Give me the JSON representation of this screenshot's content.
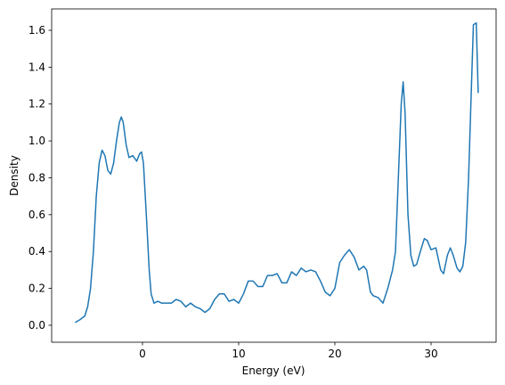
{
  "chart_data": {
    "type": "line",
    "xlabel": "Energy (eV)",
    "ylabel": "Density",
    "x": [
      -7,
      -6.5,
      -6,
      -5.7,
      -5.4,
      -5.1,
      -4.8,
      -4.5,
      -4.2,
      -3.9,
      -3.6,
      -3.3,
      -3,
      -2.7,
      -2.4,
      -2.2,
      -2,
      -1.7,
      -1.4,
      -1,
      -0.6,
      -0.3,
      -0.1,
      0.1,
      0.4,
      0.7,
      0.9,
      1.2,
      1.6,
      2,
      2.5,
      3,
      3.5,
      4,
      4.5,
      5,
      5.5,
      6,
      6.5,
      7,
      7.5,
      8,
      8.5,
      9,
      9.5,
      10,
      10.5,
      11,
      11.5,
      12,
      12.5,
      13,
      13.5,
      14,
      14.5,
      15,
      15.5,
      16,
      16.5,
      17,
      17.5,
      18,
      18.5,
      19,
      19.5,
      20,
      20.5,
      21,
      21.5,
      22,
      22.5,
      23,
      23.3,
      23.7,
      24,
      24.5,
      25,
      25.5,
      26,
      26.3,
      26.6,
      26.9,
      27.1,
      27.3,
      27.6,
      27.9,
      28.2,
      28.5,
      29,
      29.3,
      29.6,
      30,
      30.5,
      31,
      31.3,
      31.7,
      32,
      32.3,
      32.7,
      33,
      33.3,
      33.6,
      33.9,
      34.2,
      34.4,
      34.7,
      34.9
    ],
    "values": [
      0.015,
      0.03,
      0.05,
      0.1,
      0.2,
      0.4,
      0.7,
      0.88,
      0.95,
      0.92,
      0.84,
      0.82,
      0.88,
      1.0,
      1.1,
      1.13,
      1.1,
      0.98,
      0.91,
      0.92,
      0.89,
      0.93,
      0.94,
      0.88,
      0.6,
      0.3,
      0.17,
      0.12,
      0.13,
      0.12,
      0.12,
      0.12,
      0.14,
      0.13,
      0.1,
      0.12,
      0.1,
      0.09,
      0.07,
      0.09,
      0.14,
      0.17,
      0.17,
      0.13,
      0.14,
      0.12,
      0.17,
      0.24,
      0.24,
      0.21,
      0.21,
      0.27,
      0.27,
      0.28,
      0.23,
      0.23,
      0.29,
      0.27,
      0.31,
      0.29,
      0.3,
      0.29,
      0.24,
      0.18,
      0.16,
      0.2,
      0.34,
      0.38,
      0.41,
      0.37,
      0.3,
      0.32,
      0.3,
      0.18,
      0.16,
      0.15,
      0.12,
      0.2,
      0.3,
      0.4,
      0.8,
      1.2,
      1.32,
      1.15,
      0.6,
      0.38,
      0.32,
      0.33,
      0.42,
      0.47,
      0.46,
      0.41,
      0.42,
      0.3,
      0.28,
      0.38,
      0.42,
      0.38,
      0.31,
      0.29,
      0.32,
      0.45,
      0.8,
      1.3,
      1.63,
      1.64,
      1.26
    ],
    "color": "#1f77b4",
    "xlim": [
      -9.44,
      36.76
    ],
    "ylim": [
      -0.092,
      1.716
    ],
    "xticks": [
      0,
      10,
      20,
      30
    ],
    "yticks": [
      {
        "value": 0,
        "label": "0.0"
      },
      {
        "value": 0.2,
        "label": "0.2"
      },
      {
        "value": 0.4,
        "label": "0.4"
      },
      {
        "value": 0.6,
        "label": "0.6"
      },
      {
        "value": 0.8,
        "label": "0.8"
      },
      {
        "value": 1.0,
        "label": "1.0"
      },
      {
        "value": 1.2,
        "label": "1.2"
      },
      {
        "value": 1.4,
        "label": "1.4"
      },
      {
        "value": 1.6,
        "label": "1.6"
      }
    ]
  }
}
